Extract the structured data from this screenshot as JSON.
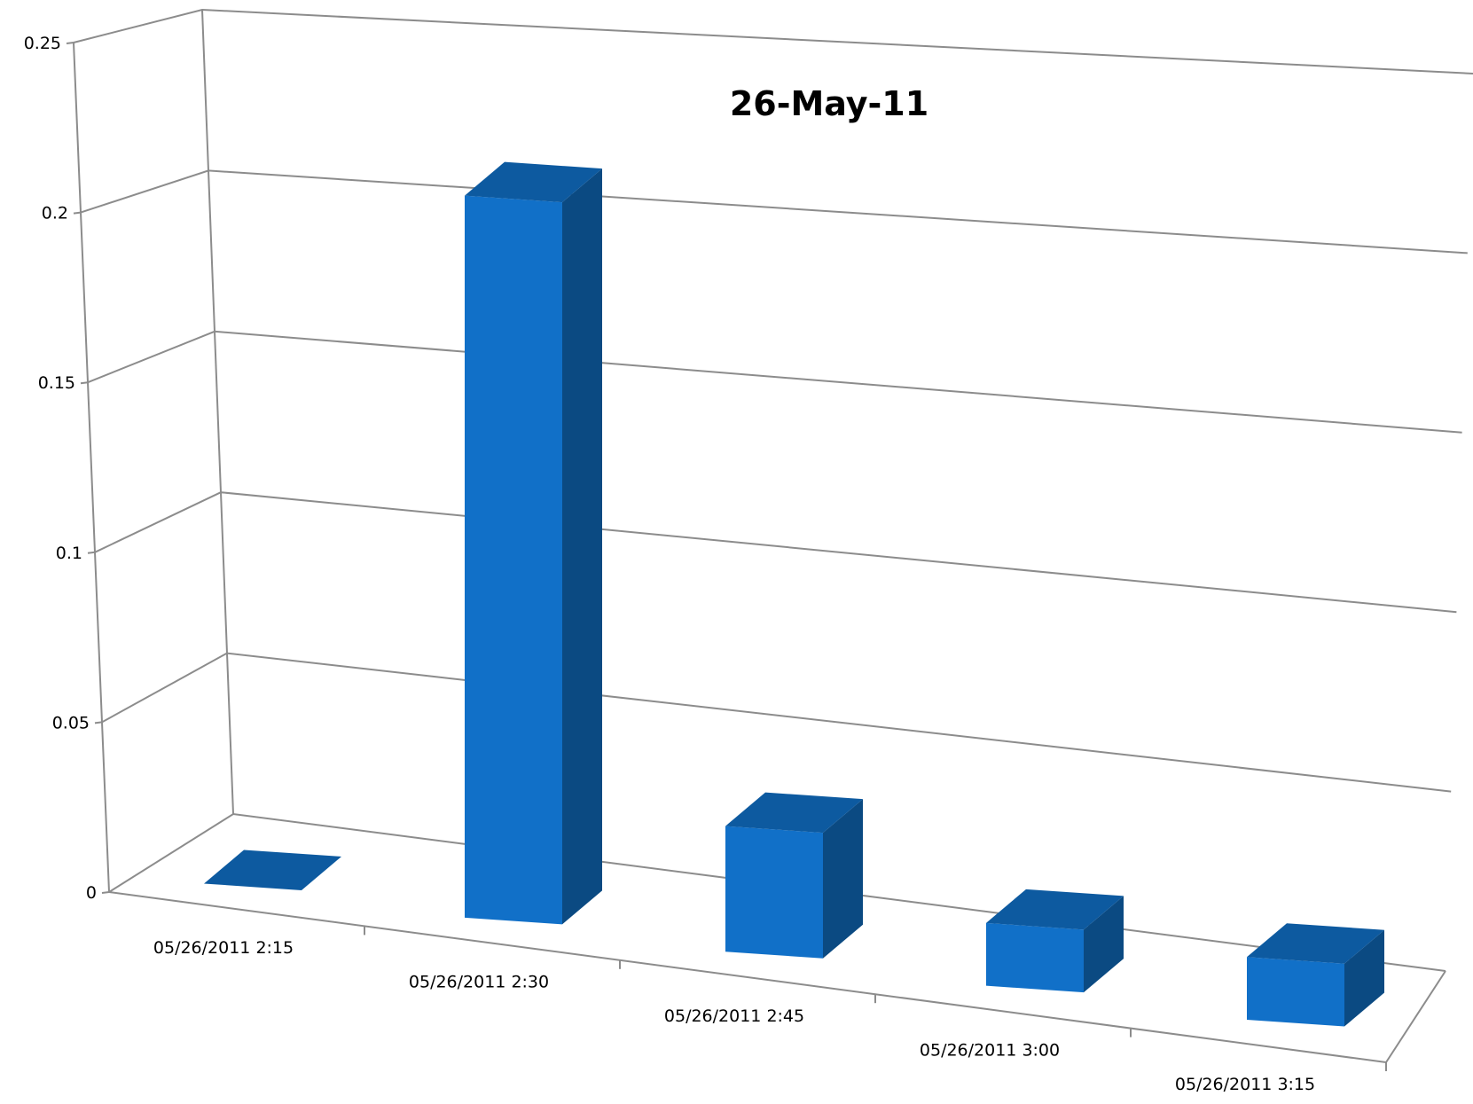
{
  "chart_data": {
    "type": "bar",
    "title": "26-May-11",
    "xlabel": "",
    "ylabel": "",
    "categories": [
      "05/26/2011 2:15",
      "05/26/2011 2:30",
      "05/26/2011 2:45",
      "05/26/2011 3:00",
      "05/26/2011 3:15"
    ],
    "values": [
      0,
      0.23,
      0.04,
      0.02,
      0.02
    ],
    "ylim": [
      0,
      0.25
    ],
    "y_ticks": [
      "0",
      "0.05",
      "0.1",
      "0.15",
      "0.2",
      "0.25"
    ],
    "grid": true,
    "legend": "none",
    "style": "3d-column",
    "colors": {
      "front": "#1170c8",
      "side": "#0b4a82",
      "top": "#0d5aa0",
      "grid": "#8c8c8c"
    }
  }
}
